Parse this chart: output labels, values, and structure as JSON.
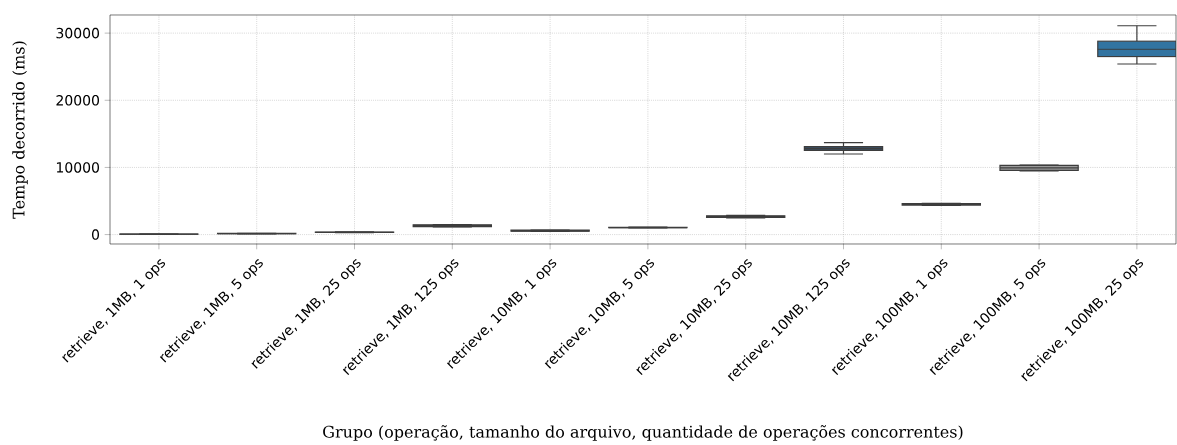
{
  "chart_data": {
    "type": "box",
    "xlabel": "Grupo (operação, tamanho do arquivo, quantidade de operações concorrentes)",
    "ylabel": "Tempo decorrido (ms)",
    "categories": [
      "retrieve, 1MB, 1 ops",
      "retrieve, 1MB, 5 ops",
      "retrieve, 1MB, 25 ops",
      "retrieve, 1MB, 125 ops",
      "retrieve, 10MB, 1 ops",
      "retrieve, 10MB, 5 ops",
      "retrieve, 10MB, 25 ops",
      "retrieve, 10MB, 125 ops",
      "retrieve, 100MB, 1 ops",
      "retrieve, 100MB, 5 ops",
      "retrieve, 100MB, 25 ops"
    ],
    "boxes": [
      {
        "low": 40,
        "q1": 50,
        "median": 60,
        "q3": 70,
        "high": 80
      },
      {
        "low": 120,
        "q1": 140,
        "median": 150,
        "q3": 170,
        "high": 190
      },
      {
        "low": 300,
        "q1": 330,
        "median": 350,
        "q3": 380,
        "high": 410
      },
      {
        "low": 1150,
        "q1": 1200,
        "median": 1300,
        "q3": 1450,
        "high": 1500
      },
      {
        "low": 480,
        "q1": 500,
        "median": 550,
        "q3": 650,
        "high": 680
      },
      {
        "low": 1000,
        "q1": 1030,
        "median": 1050,
        "q3": 1080,
        "high": 1100
      },
      {
        "low": 2500,
        "q1": 2550,
        "median": 2650,
        "q3": 2800,
        "high": 2850
      },
      {
        "low": 12000,
        "q1": 12550,
        "median": 12800,
        "q3": 13100,
        "high": 13700
      },
      {
        "low": 4350,
        "q1": 4400,
        "median": 4500,
        "q3": 4600,
        "high": 4650
      },
      {
        "low": 9500,
        "q1": 9550,
        "median": 9930,
        "q3": 10300,
        "high": 10350
      },
      {
        "low": 25400,
        "q1": 26500,
        "median": 27600,
        "q3": 28800,
        "high": 31100
      }
    ],
    "colors": [
      "#4a4a4a",
      "#4a4a4a",
      "#4a4a4a",
      "#4a4a4a",
      "#4a4a4a",
      "#4a4a4a",
      "#4a4a4a",
      "#3b5166",
      "#555555",
      "#9a9a9a",
      "#3274a1"
    ],
    "ylim": [
      -1400,
      32700
    ],
    "yticks": [
      0,
      10000,
      20000,
      30000
    ],
    "grid": true
  }
}
